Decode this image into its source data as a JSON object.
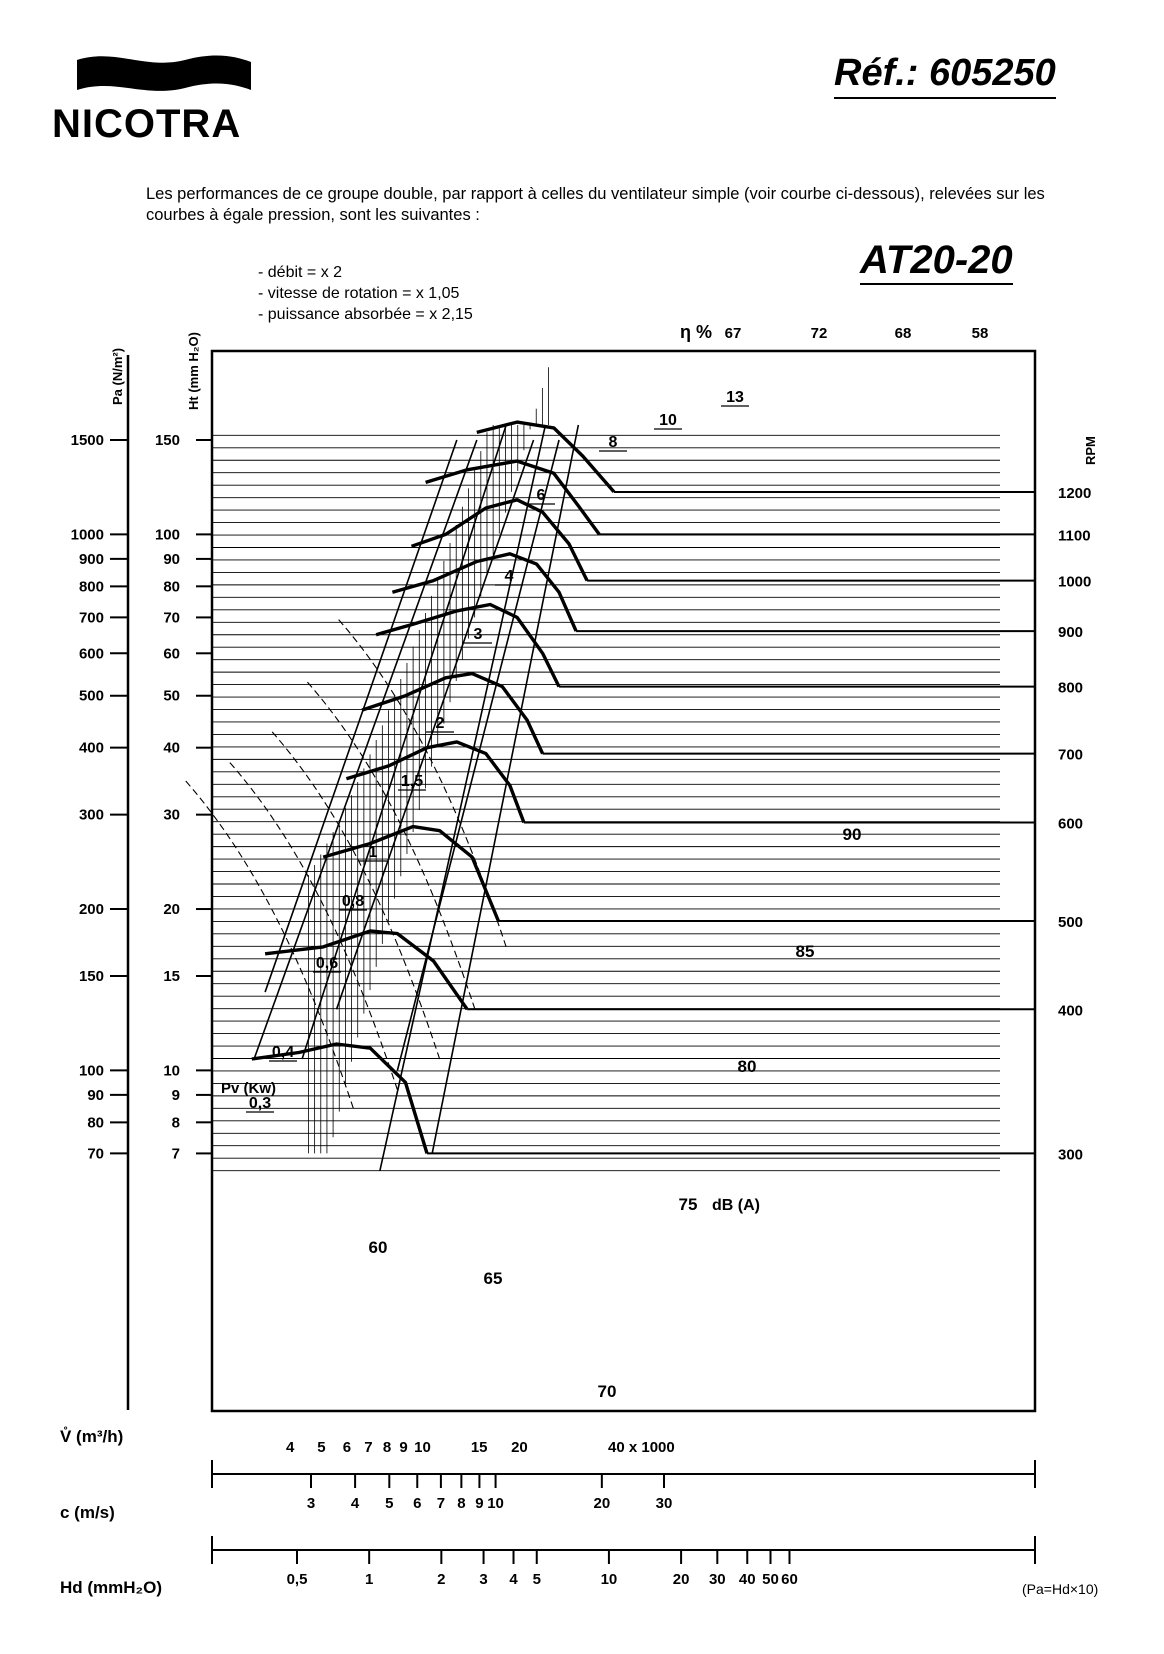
{
  "header": {
    "brand": "NICOTRA",
    "reference": "Réf.: 605250",
    "model": "AT20-20",
    "intro": "Les performances de ce groupe double, par rapport à celles du ventilateur simple (voir courbe ci-dessous), relevées sur les courbes à égale pression, sont les suivantes :",
    "facts": [
      "- débit = x 2",
      "- vitesse de rotation = x 1,05",
      "- puissance absorbée = x 2,15"
    ]
  },
  "chart_data": {
    "type": "line",
    "axes": {
      "pa": {
        "label": "Pa (N/m²)",
        "ticks": [
          "1500",
          "1000",
          "900",
          "800",
          "700",
          "600",
          "500",
          "400",
          "300",
          "200",
          "150",
          "100",
          "90",
          "80",
          "70"
        ]
      },
      "ht": {
        "label": "Ht (mm H₂O)",
        "ticks": [
          "150",
          "100",
          "90",
          "80",
          "70",
          "60",
          "50",
          "40",
          "30",
          "20",
          "15",
          "10",
          "9",
          "8",
          "7"
        ]
      },
      "rpm": {
        "label": "RPM",
        "ticks": [
          "1200",
          "1100",
          "1000",
          "900",
          "800",
          "700",
          "600",
          "500",
          "400",
          "300"
        ]
      },
      "v": {
        "label": "V̊ (m³/h)",
        "ticks": [
          "4",
          "5",
          "6",
          "7",
          "8",
          "9",
          "10",
          "15",
          "20",
          "40 x 1000"
        ]
      },
      "c": {
        "label": "c (m/s)",
        "ticks": [
          "3",
          "4",
          "5",
          "6",
          "7",
          "8",
          "9",
          "10",
          "20",
          "30"
        ]
      },
      "hd": {
        "label": "Hd (mmH₂O)",
        "ticks": [
          "0,5",
          "1",
          "2",
          "3",
          "4",
          "5",
          "10",
          "20",
          "30",
          "40",
          "50",
          "60"
        ],
        "note": "(Pa=Hd×10)"
      }
    },
    "efficiency": {
      "label": "η %",
      "values": [
        "67",
        "72",
        "68",
        "58"
      ]
    },
    "power": {
      "label": "Pv (Kw)",
      "values": [
        "13",
        "10",
        "8",
        "6",
        "4",
        "3",
        "2",
        "1,5",
        "1",
        "0,8",
        "0,6",
        "0,4",
        "0,3"
      ]
    },
    "noise": {
      "label": "dB (A)",
      "values": [
        "90",
        "85",
        "80",
        "75",
        "70",
        "65",
        "60"
      ]
    },
    "rpm_curves": [
      {
        "rpm": 1200,
        "points": [
          [
            15.0,
            155
          ],
          [
            20.0,
            162
          ],
          [
            26.0,
            158
          ],
          [
            32.0,
            140
          ],
          [
            40.0,
            120
          ]
        ]
      },
      {
        "rpm": 1100,
        "points": [
          [
            10.4,
            125
          ],
          [
            14.0,
            132
          ],
          [
            20.0,
            137
          ],
          [
            26.0,
            130
          ],
          [
            31.0,
            113
          ],
          [
            36.0,
            100
          ]
        ]
      },
      {
        "rpm": 1000,
        "points": [
          [
            9.4,
            95
          ],
          [
            12.0,
            100
          ],
          [
            16.0,
            112
          ],
          [
            20.0,
            116
          ],
          [
            24.0,
            110
          ],
          [
            29.0,
            96
          ],
          [
            33.0,
            82
          ]
        ]
      },
      {
        "rpm": 900,
        "points": [
          [
            8.2,
            78
          ],
          [
            11.0,
            82
          ],
          [
            15.0,
            89
          ],
          [
            19.0,
            92
          ],
          [
            23.0,
            88
          ],
          [
            27.0,
            78
          ],
          [
            30.5,
            66
          ]
        ]
      },
      {
        "rpm": 800,
        "points": [
          [
            7.3,
            65
          ],
          [
            9.5,
            68
          ],
          [
            13.0,
            72
          ],
          [
            16.5,
            74
          ],
          [
            20.0,
            70
          ],
          [
            24.0,
            60
          ],
          [
            27.0,
            52
          ]
        ]
      },
      {
        "rpm": 700,
        "points": [
          [
            6.6,
            47
          ],
          [
            9.0,
            50
          ],
          [
            12.0,
            54
          ],
          [
            14.5,
            55
          ],
          [
            18.0,
            52
          ],
          [
            21.5,
            45
          ],
          [
            24.0,
            39
          ]
        ]
      },
      {
        "rpm": 600,
        "points": [
          [
            5.9,
            35
          ],
          [
            8.0,
            37
          ],
          [
            10.5,
            40
          ],
          [
            13.0,
            41
          ],
          [
            16.0,
            39
          ],
          [
            19.0,
            34
          ],
          [
            21.0,
            29
          ]
        ]
      },
      {
        "rpm": 500,
        "points": [
          [
            5.0,
            25
          ],
          [
            7.0,
            26.5
          ],
          [
            9.5,
            28.5
          ],
          [
            11.5,
            28
          ],
          [
            14.5,
            25
          ],
          [
            17.5,
            19
          ]
        ]
      },
      {
        "rpm": 400,
        "points": [
          [
            3.3,
            16.5
          ],
          [
            5.0,
            17
          ],
          [
            7.0,
            18.2
          ],
          [
            8.5,
            18
          ],
          [
            11.0,
            16
          ],
          [
            14.0,
            13
          ]
        ]
      },
      {
        "rpm": 300,
        "points": [
          [
            3.0,
            10.5
          ],
          [
            4.2,
            10.8
          ],
          [
            5.5,
            11.2
          ],
          [
            7.0,
            11
          ],
          [
            9.0,
            9.5
          ],
          [
            10.5,
            7
          ]
        ]
      }
    ]
  }
}
